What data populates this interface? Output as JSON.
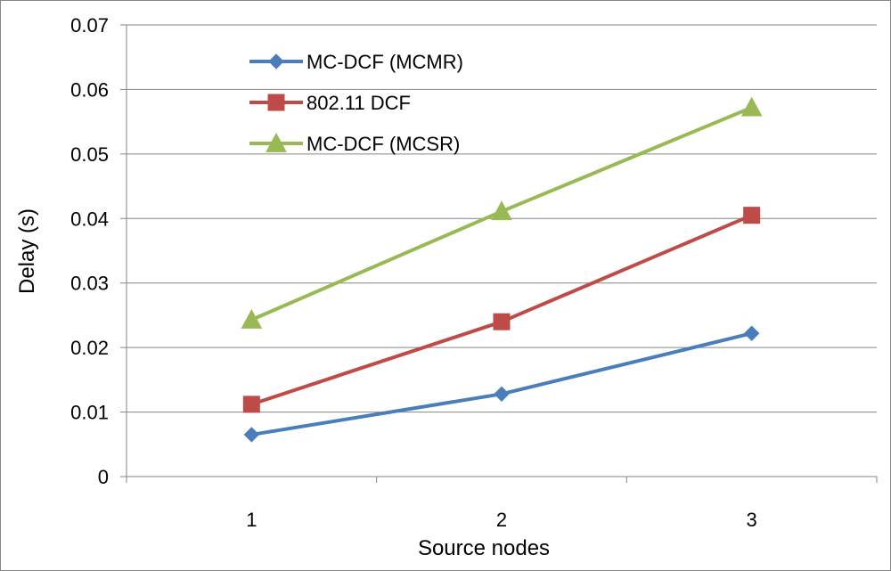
{
  "chart_data": {
    "type": "line",
    "title": "",
    "xlabel": "Source nodes",
    "ylabel": "Delay (s)",
    "categories": [
      "1",
      "2",
      "3"
    ],
    "ylim": [
      0,
      0.07
    ],
    "yticks": [
      "0",
      "0.01",
      "0.02",
      "0.03",
      "0.04",
      "0.05",
      "0.06",
      "0.07"
    ],
    "grid": true,
    "legend_position": "top-left",
    "series": [
      {
        "name": "MC-DCF (MCMR)",
        "values": [
          0.0065,
          0.0128,
          0.0222
        ],
        "color": "#4a7ebb",
        "marker": "diamond"
      },
      {
        "name": "802.11 DCF",
        "values": [
          0.0112,
          0.024,
          0.0405
        ],
        "color": "#be4b48",
        "marker": "square"
      },
      {
        "name": "MC-DCF (MCSR)",
        "values": [
          0.0243,
          0.0411,
          0.0572
        ],
        "color": "#98b954",
        "marker": "triangle"
      }
    ]
  }
}
